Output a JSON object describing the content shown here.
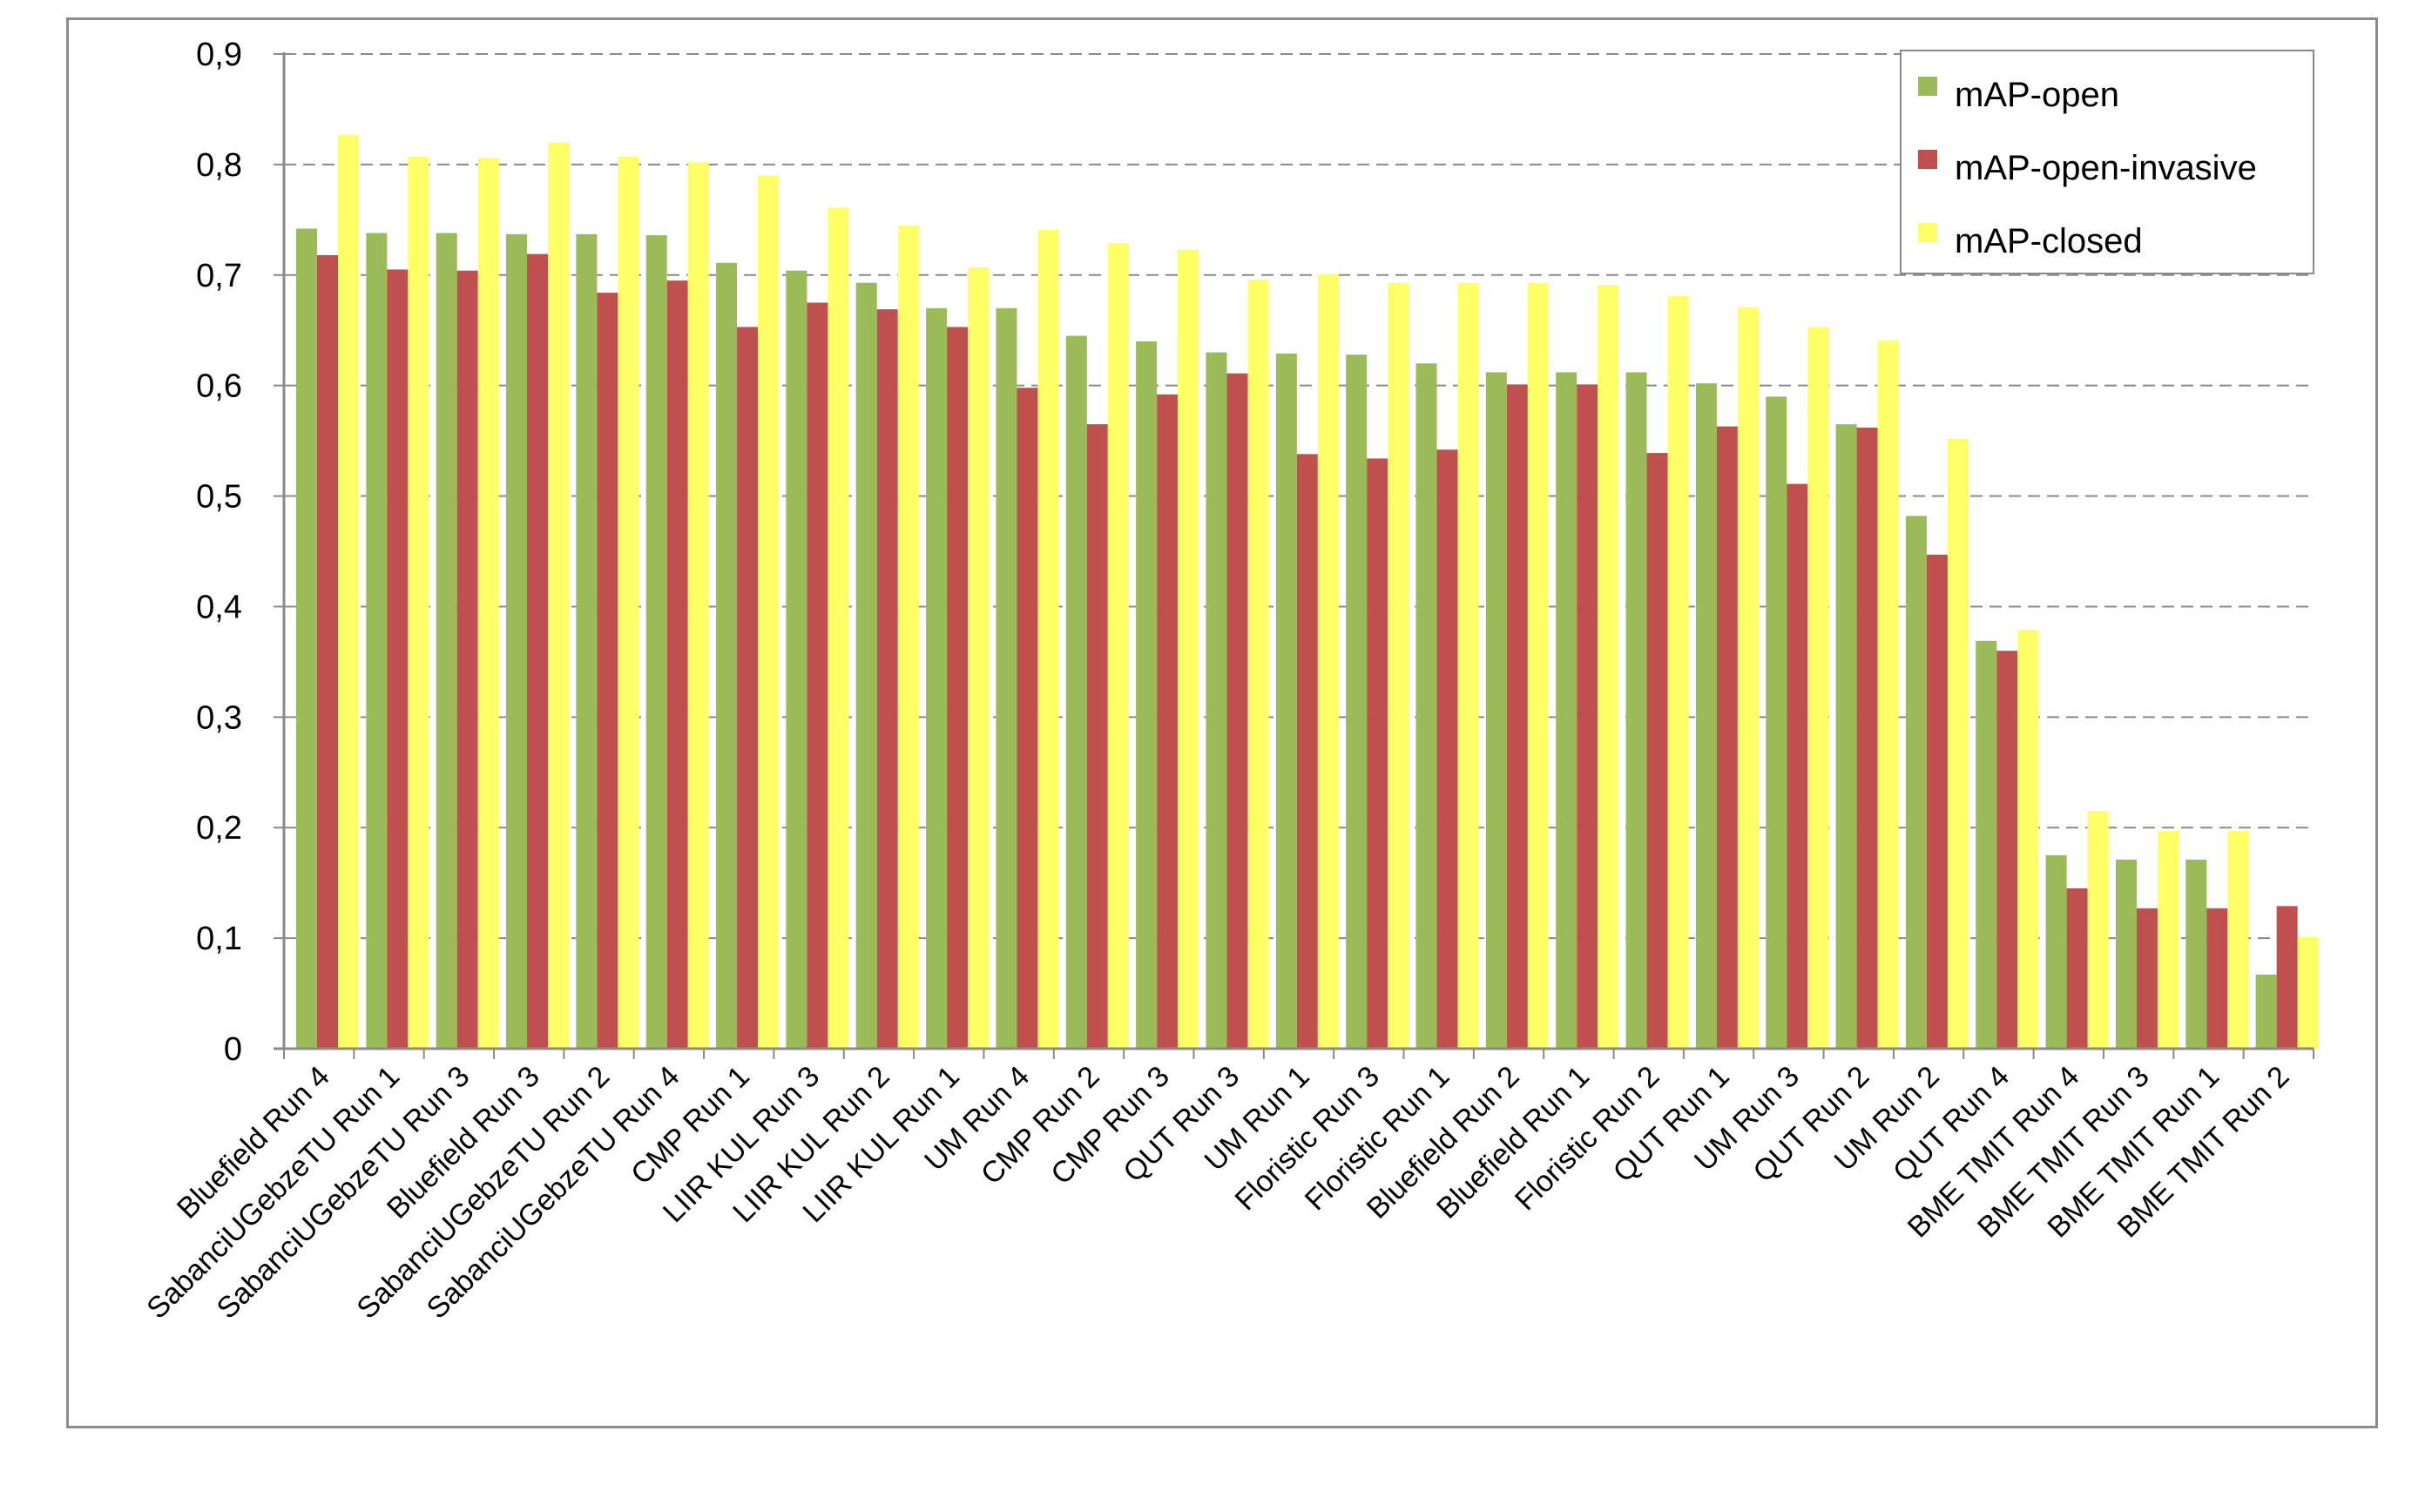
{
  "chart_data": {
    "type": "bar",
    "categories": [
      "Bluefield Run 4",
      "SabanciUGebzeTU Run 1",
      "SabanciUGebzeTU Run 3",
      "Bluefield Run 3",
      "SabanciUGebzeTU Run 2",
      "SabanciUGebzeTU Run 4",
      "CMP Run 1",
      "LIIR KUL Run 3",
      "LIIR KUL Run 2",
      "LIIR KUL Run 1",
      "UM Run 4",
      "CMP Run 2",
      "CMP Run 3",
      "QUT Run 3",
      "UM Run 1",
      "Floristic Run 3",
      "Floristic Run 1",
      "Bluefield Run 2",
      "Bluefield Run 1",
      "Floristic Run 2",
      "QUT Run 1",
      "UM Run 3",
      "QUT Run 2",
      "UM Run 2",
      "QUT Run 4",
      "BME TMIT Run 4",
      "BME TMIT Run 3",
      "BME TMIT Run 1",
      "BME TMIT Run 2"
    ],
    "series": [
      {
        "name": "mAP-open",
        "color": "#9bbb59",
        "values": [
          0.742,
          0.738,
          0.738,
          0.737,
          0.737,
          0.736,
          0.711,
          0.704,
          0.693,
          0.67,
          0.67,
          0.645,
          0.64,
          0.63,
          0.629,
          0.628,
          0.62,
          0.612,
          0.612,
          0.612,
          0.602,
          0.59,
          0.565,
          0.482,
          0.369,
          0.175,
          0.171,
          0.171,
          0.067
        ]
      },
      {
        "name": "mAP-open-invasive",
        "color": "#c0504d",
        "values": [
          0.718,
          0.705,
          0.704,
          0.719,
          0.684,
          0.695,
          0.653,
          0.675,
          0.669,
          0.653,
          0.598,
          0.565,
          0.592,
          0.611,
          0.538,
          0.534,
          0.542,
          0.601,
          0.601,
          0.539,
          0.563,
          0.511,
          0.562,
          0.447,
          0.36,
          0.145,
          0.127,
          0.127,
          0.129
        ]
      },
      {
        "name": "mAP-closed",
        "color": "#ffff66",
        "values": [
          0.827,
          0.807,
          0.806,
          0.82,
          0.807,
          0.802,
          0.79,
          0.761,
          0.745,
          0.707,
          0.741,
          0.729,
          0.723,
          0.696,
          0.701,
          0.693,
          0.693,
          0.693,
          0.691,
          0.681,
          0.671,
          0.653,
          0.641,
          0.552,
          0.379,
          0.215,
          0.197,
          0.197,
          0.101
        ]
      }
    ],
    "yticks": [
      "0",
      "0,1",
      "0,2",
      "0,3",
      "0,4",
      "0,5",
      "0,6",
      "0,7",
      "0,8",
      "0,9"
    ],
    "ylim": [
      0,
      0.9
    ],
    "grid": true,
    "legend_position": "top-right"
  }
}
